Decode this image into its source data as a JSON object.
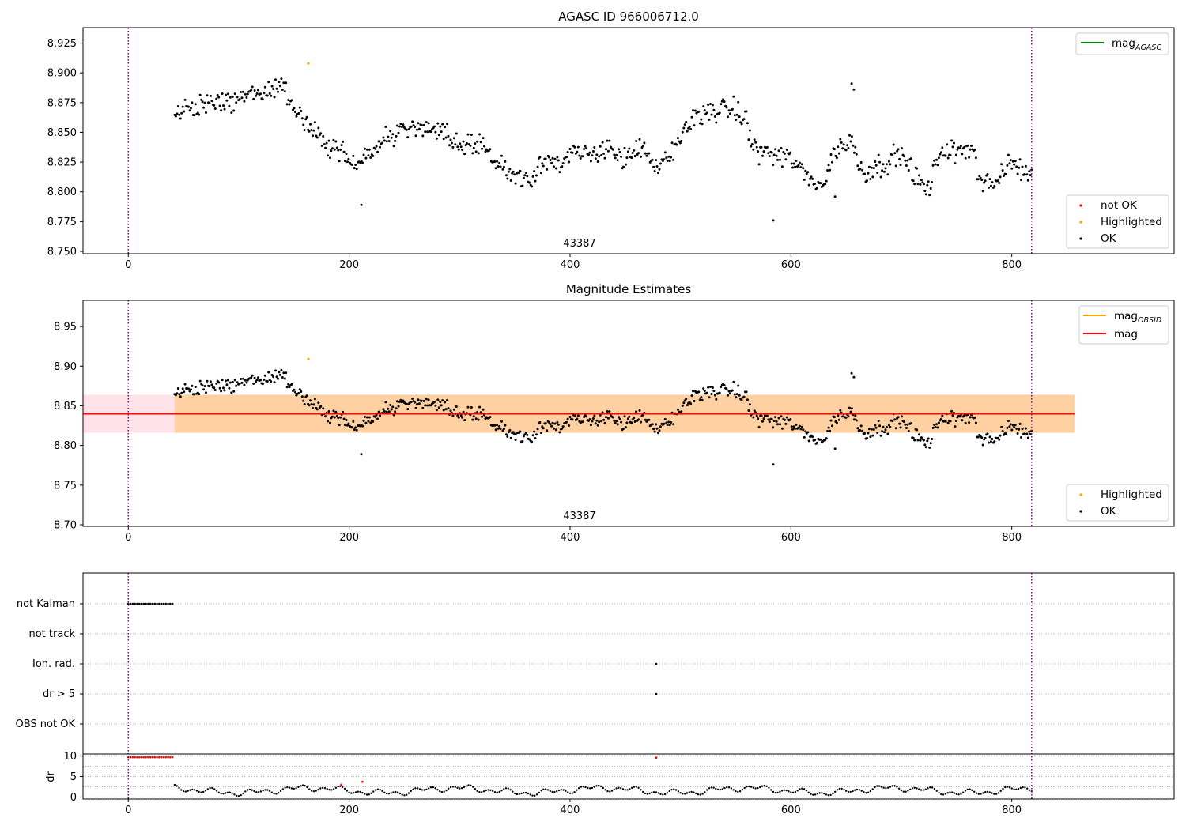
{
  "figure": {
    "panel1": {
      "title": "AGASC ID 966006712.0",
      "annotation": "43387",
      "legend_lines": [
        {
          "label": "mag",
          "sub": "AGASC",
          "color": "#008000"
        }
      ],
      "legend_points": [
        {
          "label": "not OK",
          "color": "#ff0000"
        },
        {
          "label": "Highlighted",
          "color": "#ffa500"
        },
        {
          "label": "OK",
          "color": "#000000"
        }
      ]
    },
    "panel2": {
      "title": "Magnitude Estimates",
      "annotation": "43387",
      "legend_lines": [
        {
          "label": "mag",
          "sub": "OBSID",
          "color": "#ffa500"
        },
        {
          "label": "mag",
          "sub": "",
          "color": "#ff0000"
        }
      ],
      "legend_points": [
        {
          "label": "Highlighted",
          "color": "#ffa500"
        },
        {
          "label": "OK",
          "color": "#000000"
        }
      ]
    },
    "panel3": {
      "flag_labels": [
        "not Kalman",
        "not track",
        "Ion. rad.",
        "dr > 5",
        "OBS not OK"
      ],
      "dr_ylabel": "dr"
    }
  },
  "chart_data": [
    {
      "type": "scatter",
      "title": "AGASC ID 966006712.0",
      "xlim": [
        -41,
        947
      ],
      "ylim": [
        8.748,
        8.938
      ],
      "xticks": [
        0,
        200,
        400,
        600,
        800
      ],
      "yticks": [
        8.75,
        8.775,
        8.8,
        8.825,
        8.85,
        8.875,
        8.9,
        8.925
      ],
      "vlines_x": [
        0,
        818
      ],
      "vline_color": "#800080",
      "annotation": {
        "text": "43387",
        "x": 409
      },
      "trend": [
        [
          42,
          8.865
        ],
        [
          60,
          8.871
        ],
        [
          80,
          8.875
        ],
        [
          100,
          8.878
        ],
        [
          120,
          8.883
        ],
        [
          140,
          8.89
        ],
        [
          150,
          8.872
        ],
        [
          165,
          8.852
        ],
        [
          178,
          8.84
        ],
        [
          195,
          8.832
        ],
        [
          210,
          8.826
        ],
        [
          225,
          8.838
        ],
        [
          240,
          8.848
        ],
        [
          260,
          8.855
        ],
        [
          280,
          8.85
        ],
        [
          300,
          8.84
        ],
        [
          320,
          8.842
        ],
        [
          335,
          8.822
        ],
        [
          350,
          8.815
        ],
        [
          365,
          8.81
        ],
        [
          375,
          8.83
        ],
        [
          390,
          8.822
        ],
        [
          405,
          8.832
        ],
        [
          420,
          8.83
        ],
        [
          435,
          8.84
        ],
        [
          450,
          8.825
        ],
        [
          465,
          8.84
        ],
        [
          475,
          8.818
        ],
        [
          490,
          8.828
        ],
        [
          500,
          8.846
        ],
        [
          515,
          8.866
        ],
        [
          530,
          8.868
        ],
        [
          545,
          8.87
        ],
        [
          560,
          8.86
        ],
        [
          565,
          8.838
        ],
        [
          580,
          8.832
        ],
        [
          600,
          8.828
        ],
        [
          615,
          8.812
        ],
        [
          630,
          8.806
        ],
        [
          640,
          8.836
        ],
        [
          655,
          8.842
        ],
        [
          665,
          8.816
        ],
        [
          680,
          8.822
        ],
        [
          700,
          8.832
        ],
        [
          715,
          8.81
        ],
        [
          725,
          8.8
        ],
        [
          735,
          8.836
        ],
        [
          750,
          8.832
        ],
        [
          765,
          8.84
        ],
        [
          770,
          8.812
        ],
        [
          785,
          8.806
        ],
        [
          800,
          8.825
        ],
        [
          818,
          8.812
        ]
      ],
      "spread": 0.008,
      "outliers_ok": [
        [
          211,
          8.789
        ],
        [
          584,
          8.776
        ],
        [
          655,
          8.891
        ],
        [
          657,
          8.886
        ],
        [
          640,
          8.796
        ]
      ],
      "highlighted": [
        [
          163,
          8.908
        ]
      ]
    },
    {
      "type": "scatter",
      "title": "Magnitude Estimates",
      "xlim": [
        -41,
        947
      ],
      "ylim": [
        8.698,
        8.983
      ],
      "xticks": [
        0,
        200,
        400,
        600,
        800
      ],
      "yticks": [
        8.7,
        8.75,
        8.8,
        8.85,
        8.9,
        8.95
      ],
      "hlines": [
        {
          "name": "mag",
          "y": 8.84,
          "color": "#ff0000"
        }
      ],
      "bands": [
        {
          "y": [
            8.816,
            8.864
          ],
          "x": [
            -41,
            857
          ],
          "color": "#ffc0cb"
        },
        {
          "y": [
            8.816,
            8.864
          ],
          "x": [
            42,
            857
          ],
          "color": "#ffa500"
        }
      ],
      "annotation": {
        "text": "43387",
        "x": 409
      },
      "highlighted": [
        [
          163,
          8.909
        ]
      ]
    },
    {
      "type": "scatter",
      "xlim": [
        -41,
        947
      ],
      "flags": {
        "not Kalman": {
          "x_range": [
            0,
            40
          ],
          "step": 2
        },
        "Ion. rad.": {
          "x": [
            478
          ]
        },
        "dr > 5": {
          "x": [
            478
          ]
        }
      },
      "dr": {
        "ylim": [
          -0.5,
          10.5
        ],
        "yticks": [
          0,
          5,
          10
        ],
        "high_red": {
          "x_range": [
            0,
            40
          ],
          "y": 9.7
        },
        "extra_red": [
          [
            193,
            3.0
          ],
          [
            212,
            3.7
          ],
          [
            478,
            9.6
          ]
        ]
      }
    }
  ]
}
